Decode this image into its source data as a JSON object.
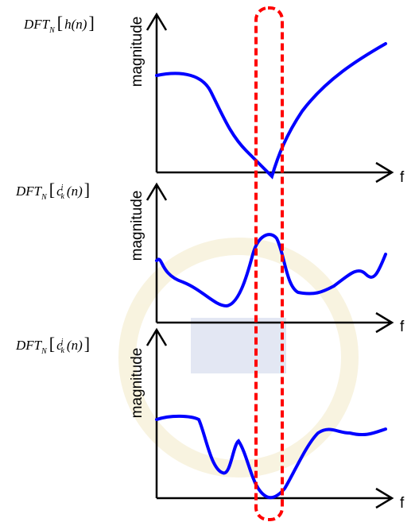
{
  "panels": [
    {
      "label": {
        "func": "DFT",
        "sub": "N",
        "open": "[",
        "arg": "h(n)",
        "close": "]"
      },
      "y_axis": "magnitude",
      "x_axis": "f"
    },
    {
      "label": {
        "func": "DFT",
        "sub": "N",
        "open": "[",
        "arg_base": "c",
        "arg_sup": "i",
        "arg_sub": "k",
        "arg_rest": "(n)",
        "close": "]"
      },
      "y_axis": "magnitude",
      "x_axis": "f"
    },
    {
      "label": {
        "func": "DFT",
        "sub": "N",
        "open": "[",
        "arg_base": "c",
        "arg_sup": "j",
        "arg_sub": "k",
        "arg_rest": "(n)",
        "close": "]"
      },
      "y_axis": "magnitude",
      "x_axis": "f"
    }
  ]
}
